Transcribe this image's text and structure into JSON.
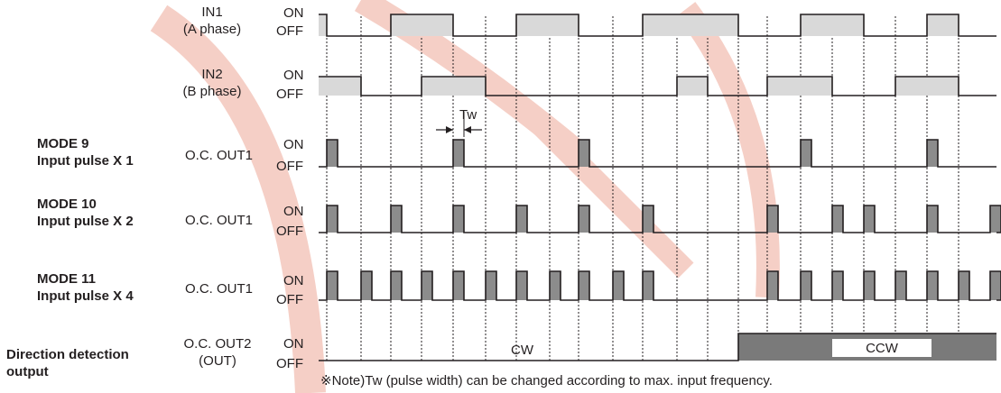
{
  "rows": {
    "in1": {
      "name": "IN1",
      "sub": "(A phase)",
      "on": "ON",
      "off": "OFF"
    },
    "in2": {
      "name": "IN2",
      "sub": "(B phase)",
      "on": "ON",
      "off": "OFF"
    },
    "mode9": {
      "mode": "MODE 9",
      "desc": "Input pulse X 1",
      "signal": "O.C. OUT1",
      "on": "ON",
      "off": "OFF"
    },
    "mode10": {
      "mode": "MODE 10",
      "desc": "Input pulse X 2",
      "signal": "O.C. OUT1",
      "on": "ON",
      "off": "OFF"
    },
    "mode11": {
      "mode": "MODE 11",
      "desc": "Input pulse X 4",
      "signal": "O.C. OUT1",
      "on": "ON",
      "off": "OFF"
    },
    "dir": {
      "mode": "Direction detection",
      "desc": "output",
      "signal": "O.C. OUT2",
      "signal_sub": "(OUT)",
      "on": "ON",
      "off": "OFF"
    }
  },
  "tw_label": "Tw",
  "cw_label": "CW",
  "ccw_label": "CCW",
  "note": "※Note)Tw (pulse width) can be changed according to max. input frequency.",
  "colors": {
    "line": "#231f20",
    "shade": "#d9d9d9",
    "pulse_fill": "#8c8c8c",
    "ccw_fill": "#7a7a7a",
    "watermark": "#f5cfc6"
  }
}
